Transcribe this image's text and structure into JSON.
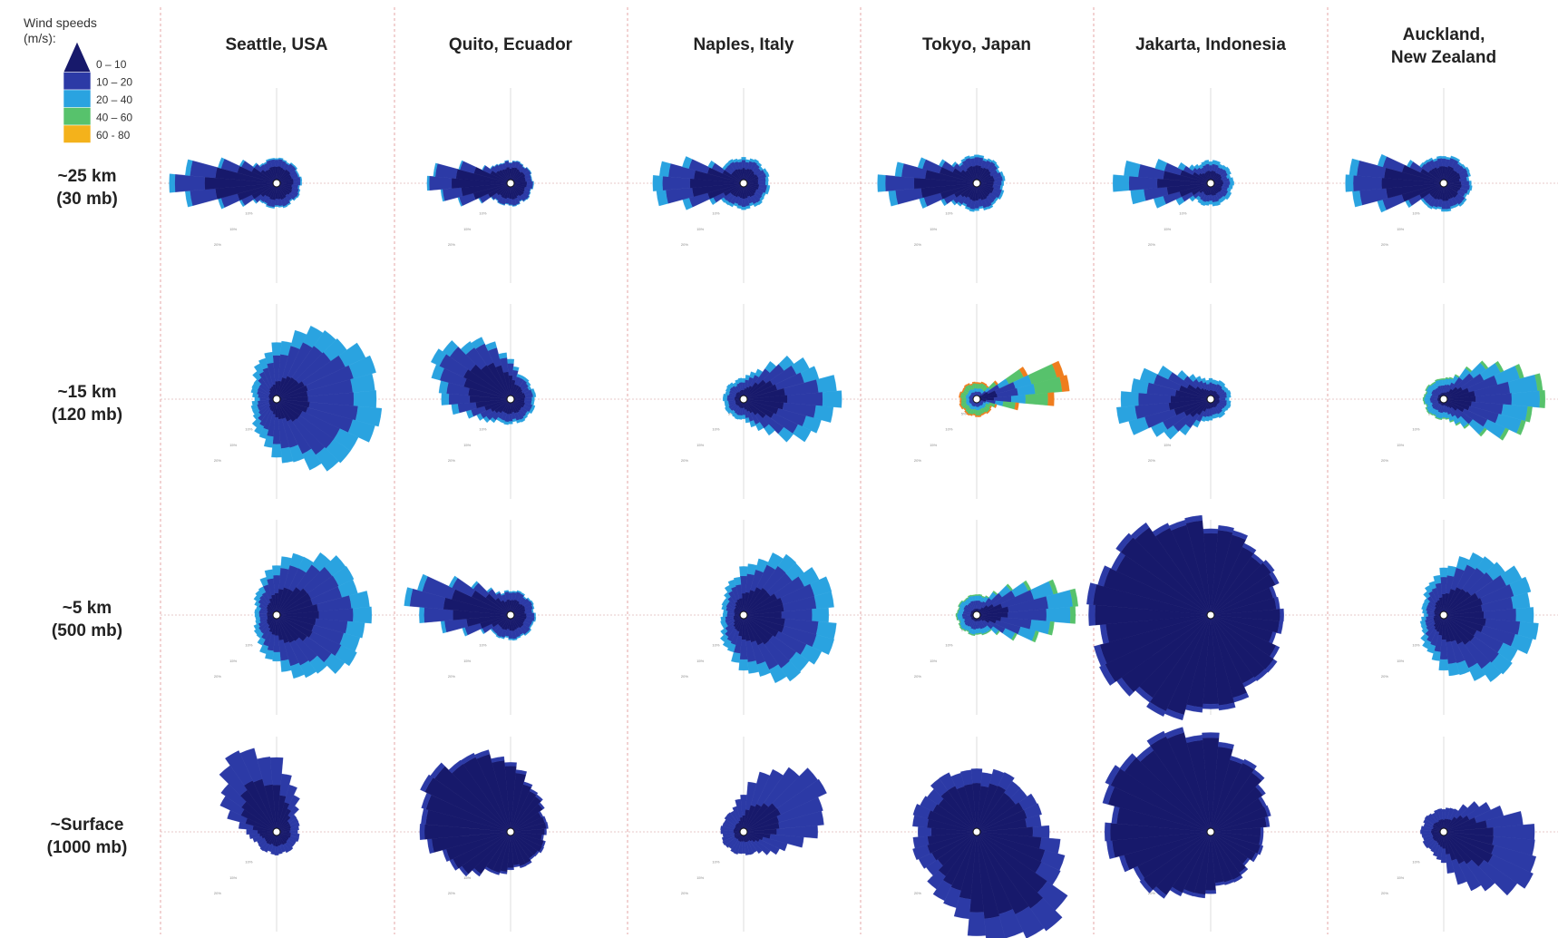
{
  "legend": {
    "title_line1": "Wind speeds",
    "title_line2": "(m/s):",
    "bins": [
      {
        "label": "0 – 10",
        "color": "#17196b"
      },
      {
        "label": "10 – 20",
        "color": "#2c3aa6"
      },
      {
        "label": "20 – 40",
        "color": "#2aa3e0"
      },
      {
        "label": "40 – 60",
        "color": "#57c26c"
      },
      {
        "label": "60 - 80",
        "color": "#f4b21b"
      }
    ],
    "extra_color": "#ef7d1e"
  },
  "chart_data": {
    "type": "wind-rose-grid",
    "columns": [
      [
        "Seattle, USA"
      ],
      [
        "Quito, Ecuador"
      ],
      [
        "Naples, Italy"
      ],
      [
        "Tokyo, Japan"
      ],
      [
        "Jakarta, Indonesia"
      ],
      [
        "Auckland,",
        "New Zealand"
      ]
    ],
    "rows": [
      [
        "~25 km",
        "(30 mb)"
      ],
      [
        "~15 km",
        "(120 mb)"
      ],
      [
        "~5 km",
        "(500 mb)"
      ],
      [
        "~Surface",
        "(1000 mb)"
      ]
    ],
    "max_frequency_pct": 20,
    "rose_profiles_frequency_pct": [
      [
        {
          "main_dir": 270,
          "spread": 14,
          "peak": 20,
          "base": 1.2,
          "shares": [
            0.45,
            0.45,
            0.1,
            0,
            0
          ]
        },
        {
          "main_dir": 270,
          "spread": 14,
          "peak": 13,
          "base": 1.0,
          "shares": [
            0.5,
            0.45,
            0.05,
            0,
            0
          ]
        },
        {
          "main_dir": 270,
          "spread": 14,
          "peak": 17,
          "base": 1.3,
          "shares": [
            0.35,
            0.45,
            0.2,
            0,
            0
          ]
        },
        {
          "main_dir": 270,
          "spread": 14,
          "peak": 17,
          "base": 1.5,
          "shares": [
            0.4,
            0.45,
            0.15,
            0,
            0
          ]
        },
        {
          "main_dir": 270,
          "spread": 14,
          "peak": 17,
          "base": 1.0,
          "shares": [
            0.3,
            0.4,
            0.3,
            0,
            0
          ]
        },
        {
          "main_dir": 270,
          "spread": 14,
          "peak": 20,
          "base": 1.5,
          "shares": [
            0.4,
            0.45,
            0.15,
            0,
            0
          ]
        }
      ],
      [
        {
          "main_dir": 90,
          "spread": 55,
          "peak": 20,
          "base": 1.0,
          "shares": [
            0.1,
            0.5,
            0.4,
            0,
            0
          ]
        },
        {
          "main_dir": 300,
          "spread": 30,
          "peak": 13,
          "base": 1.2,
          "shares": [
            0.35,
            0.45,
            0.2,
            0,
            0
          ]
        },
        {
          "main_dir": 90,
          "spread": 28,
          "peak": 17,
          "base": 0.8,
          "shares": [
            0.2,
            0.45,
            0.35,
            0,
            0
          ]
        },
        {
          "main_dir": 78,
          "spread": 11,
          "peak": 20,
          "base": 0.6,
          "shares": [
            0.05,
            0.15,
            0.2,
            0.45,
            0.15
          ]
        },
        {
          "main_dir": 265,
          "spread": 24,
          "peak": 16,
          "base": 0.8,
          "shares": [
            0.2,
            0.45,
            0.35,
            0,
            0
          ]
        },
        {
          "main_dir": 90,
          "spread": 24,
          "peak": 19,
          "base": 0.8,
          "shares": [
            0.1,
            0.35,
            0.45,
            0.1,
            0
          ]
        }
      ],
      [
        {
          "main_dir": 90,
          "spread": 55,
          "peak": 16,
          "base": 0.8,
          "shares": [
            0.2,
            0.45,
            0.35,
            0,
            0
          ]
        },
        {
          "main_dir": 280,
          "spread": 16,
          "peak": 20,
          "base": 1.2,
          "shares": [
            0.4,
            0.5,
            0.1,
            0,
            0
          ]
        },
        {
          "main_dir": 95,
          "spread": 55,
          "peak": 16,
          "base": 0.8,
          "shares": [
            0.2,
            0.45,
            0.35,
            0,
            0
          ]
        },
        {
          "main_dir": 85,
          "spread": 18,
          "peak": 19,
          "base": 0.8,
          "shares": [
            0.1,
            0.4,
            0.4,
            0.1,
            0
          ]
        },
        {
          "main_dir": 265,
          "spread": 70,
          "peak": 20,
          "base": 9.0,
          "shares": [
            0.9,
            0.1,
            0,
            0,
            0
          ]
        },
        {
          "main_dir": 95,
          "spread": 55,
          "peak": 16,
          "base": 0.8,
          "shares": [
            0.2,
            0.45,
            0.35,
            0,
            0
          ]
        }
      ],
      [
        {
          "main_dir": 335,
          "spread": 28,
          "peak": 14,
          "base": 1.0,
          "shares": [
            0.4,
            0.6,
            0,
            0,
            0
          ]
        },
        {
          "main_dir": 300,
          "spread": 45,
          "peak": 16,
          "base": 2.5,
          "shares": [
            0.9,
            0.1,
            0,
            0,
            0
          ]
        },
        {
          "main_dir": 60,
          "spread": 30,
          "peak": 15,
          "base": 1.0,
          "shares": [
            0.2,
            0.8,
            0,
            0,
            0
          ]
        },
        {
          "main_dir": 150,
          "spread": 30,
          "peak": 20,
          "base": 8.0,
          "shares": [
            0.6,
            0.4,
            0,
            0,
            0
          ]
        },
        {
          "main_dir": 305,
          "spread": 60,
          "peak": 20,
          "base": 5.0,
          "shares": [
            0.9,
            0.1,
            0,
            0,
            0
          ]
        },
        {
          "main_dir": 110,
          "spread": 30,
          "peak": 18,
          "base": 1.0,
          "shares": [
            0.3,
            0.7,
            0,
            0,
            0
          ]
        }
      ]
    ]
  }
}
